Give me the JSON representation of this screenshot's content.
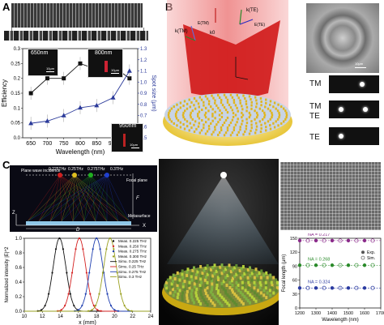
{
  "panels": {
    "A": {
      "label": "A",
      "insets": [
        {
          "label": "650nm",
          "scale": "10μm"
        },
        {
          "label": "800nm",
          "scale": "10μm"
        },
        {
          "label": "950nm",
          "scale": "10μm"
        }
      ]
    },
    "B": {
      "label": "B",
      "vectors": {
        "tm": "k(TM)",
        "te": "k(TE)",
        "k0": "k0",
        "e_tm": "E(TM)",
        "e_te": "E(TE)"
      },
      "sem_scale": "10μm",
      "modes": [
        "TM",
        "TM",
        "TE",
        "TE"
      ]
    },
    "C": {
      "label": "C",
      "schematic": {
        "incidence": "Plane wave incidence",
        "freqs": [
          "0.225THz",
          "0.25THz",
          "0.275THz",
          "0.3THz"
        ],
        "focal_plane": "Focal plane",
        "metasurface": "Metasurface",
        "F": "F",
        "D": "D",
        "X": "X",
        "Z": "Z"
      }
    },
    "D": {
      "label": "D",
      "sem_scale": ""
    }
  },
  "chart_data": [
    {
      "type": "line",
      "panel": "A",
      "xlabel": "Wavelength (nm)",
      "ylabel_left": "Efficiency",
      "ylabel_right": "Spot size (μm)",
      "x": [
        650,
        700,
        750,
        800,
        850,
        900,
        950
      ],
      "xlim": [
        625,
        975
      ],
      "ylim_left": [
        0.0,
        0.3
      ],
      "ylim_right": [
        0.5,
        1.3
      ],
      "yticks_left": [
        0.0,
        0.05,
        0.1,
        0.15,
        0.2,
        0.25,
        0.3
      ],
      "yticks_right": [
        0.5,
        0.6,
        0.7,
        0.8,
        0.9,
        1.0,
        1.1,
        1.2,
        1.3
      ],
      "series": [
        {
          "marker": "square",
          "axis": "left",
          "color": "#111111",
          "values": [
            0.15,
            0.2,
            0.2,
            0.25,
            0.23,
            0.24,
            0.2
          ]
        },
        {
          "marker": "triangle",
          "axis": "right",
          "color": "#2b3a9a",
          "values": [
            0.63,
            0.65,
            0.7,
            0.77,
            0.79,
            0.86,
            1.1
          ]
        }
      ]
    },
    {
      "type": "line",
      "panel": "C",
      "xlabel": "x (mm)",
      "ylabel": "Normalized intensity |E|^2",
      "xlim": [
        10,
        24
      ],
      "ylim": [
        0,
        1
      ],
      "xticks": [
        10,
        12,
        14,
        16,
        18,
        20,
        22,
        24
      ],
      "yticks": [
        0,
        0.2,
        0.4,
        0.6,
        0.8,
        1.0
      ],
      "legend": [
        {
          "name": "Meas. 0.225 THz",
          "color": "#111111",
          "style": "marker"
        },
        {
          "name": "Meas. 0.250 THz",
          "color": "#d42020",
          "style": "marker"
        },
        {
          "name": "Meas. 0.275 THz",
          "color": "#1f3fb0",
          "style": "marker"
        },
        {
          "name": "Meas. 0.300 THz",
          "color": "#9aa020",
          "style": "marker"
        },
        {
          "name": "Simu. 0.225 THz",
          "color": "#111111",
          "style": "line"
        },
        {
          "name": "Simu. 0.25 THz",
          "color": "#d42020",
          "style": "line"
        },
        {
          "name": "Simu. 0.275 THz",
          "color": "#1f3fb0",
          "style": "line"
        },
        {
          "name": "Simu. 0.3 THz",
          "color": "#9aa020",
          "style": "line"
        }
      ],
      "series": [
        {
          "name": "0.225 THz",
          "color": "#111111",
          "center": 13.9,
          "width": 1.0
        },
        {
          "name": "0.25 THz",
          "color": "#d42020",
          "center": 16.1,
          "width": 1.0
        },
        {
          "name": "0.275 THz",
          "color": "#1f3fb0",
          "center": 18.0,
          "width": 1.0
        },
        {
          "name": "0.3 THz",
          "color": "#9aa020",
          "center": 19.5,
          "width": 1.0
        }
      ]
    },
    {
      "type": "scatter",
      "panel": "D",
      "xlabel": "Wavelength (nm)",
      "ylabel": "Focal length (μm)",
      "xlim": [
        1200,
        1700
      ],
      "ylim": [
        0,
        150
      ],
      "xticks": [
        1200,
        1300,
        1400,
        1500,
        1600,
        1700
      ],
      "yticks": [
        0,
        30,
        60,
        90,
        120,
        150
      ],
      "legend": [
        "Exp.",
        "Sim."
      ],
      "series": [
        {
          "name": "NA = 0.217",
          "color": "#8a2a8a",
          "y": 145
        },
        {
          "name": "NA = 0.268",
          "color": "#2a8a2a",
          "y": 92
        },
        {
          "name": "NA = 0.324",
          "color": "#2a3aa0",
          "y": 43
        }
      ]
    }
  ]
}
